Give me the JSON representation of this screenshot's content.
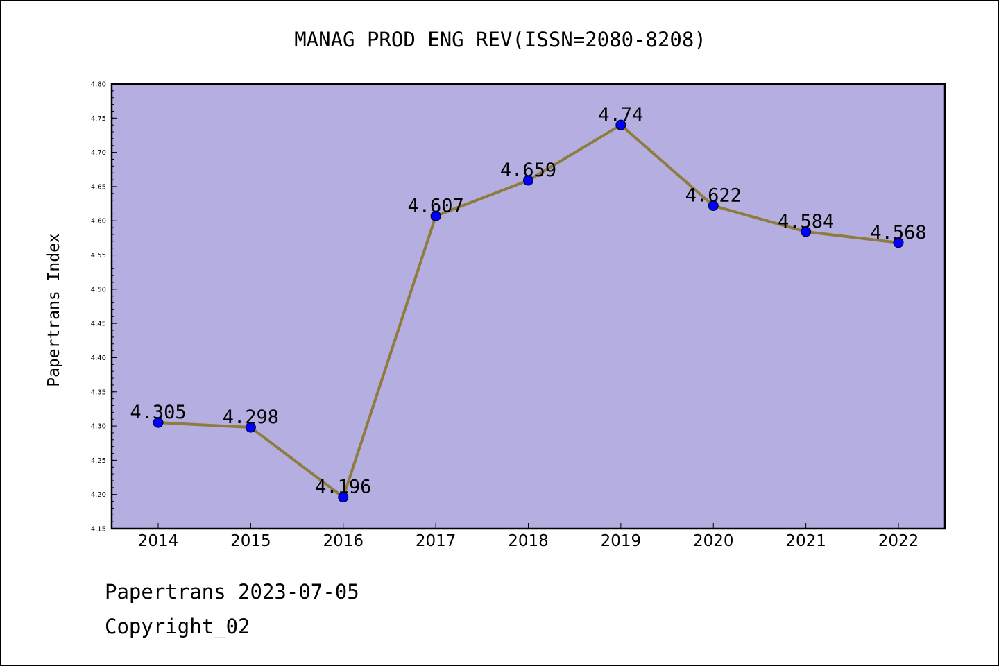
{
  "colors": {
    "plot_background": "#b5aee1",
    "line": "#8e7c3f",
    "marker": "#0000ff"
  },
  "chart_data": {
    "type": "line",
    "title": "MANAG PROD ENG REV(ISSN=2080-8208)",
    "xlabel": "",
    "ylabel": "Papertrans Index",
    "categories": [
      "2014",
      "2015",
      "2016",
      "2017",
      "2018",
      "2019",
      "2020",
      "2021",
      "2022"
    ],
    "values": [
      4.305,
      4.298,
      4.196,
      4.607,
      4.659,
      4.74,
      4.622,
      4.584,
      4.568
    ],
    "data_labels": [
      "4.305",
      "4.298",
      "4.196",
      "4.607",
      "4.659",
      "4.74",
      "4.622",
      "4.584",
      "4.568"
    ],
    "ylim": [
      4.15,
      4.8
    ],
    "yticks": [
      "4.15",
      "4.20",
      "4.25",
      "4.30",
      "4.35",
      "4.40",
      "4.45",
      "4.50",
      "4.55",
      "4.60",
      "4.65",
      "4.70",
      "4.75",
      "4.80"
    ],
    "grid": false,
    "legend": "none"
  },
  "footer": {
    "line1": "Papertrans 2023-07-05",
    "line2": "Copyright_02"
  }
}
